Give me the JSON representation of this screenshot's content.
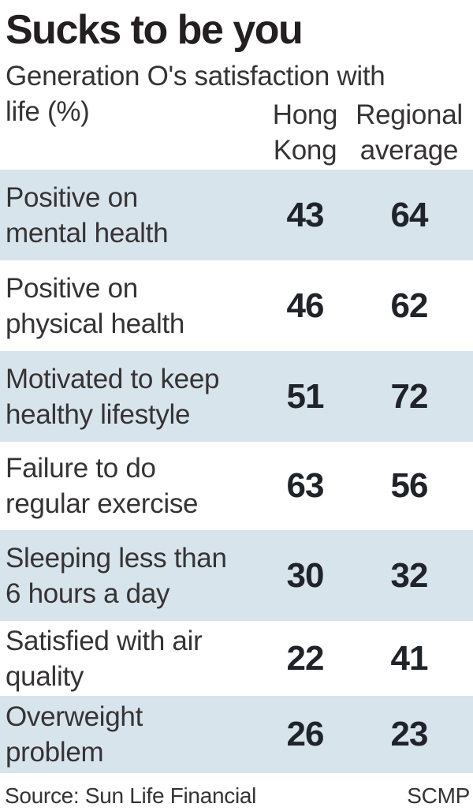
{
  "title": "Sucks to be you",
  "subtitle": "Generation O's satisfaction with\nlife (%)",
  "columns": {
    "hong_kong": "Hong\nKong",
    "regional_average": "Regional\naverage"
  },
  "table": {
    "rows": [
      {
        "label": "Positive on\nmental health",
        "hong_kong": "43",
        "regional_average": "64"
      },
      {
        "label": "Positive on\nphysical health",
        "hong_kong": "46",
        "regional_average": "62"
      },
      {
        "label": "Motivated to keep\nhealthy lifestyle",
        "hong_kong": "51",
        "regional_average": "72"
      },
      {
        "label": "Failure to do\nregular exercise",
        "hong_kong": "63",
        "regional_average": "56"
      },
      {
        "label": "Sleeping less than\n6 hours a day",
        "hong_kong": "30",
        "regional_average": "32"
      },
      {
        "label": "Satisfied with air\nquality",
        "hong_kong": "22",
        "regional_average": "41"
      },
      {
        "label": "Overweight\nproblem",
        "hong_kong": "26",
        "regional_average": "23"
      }
    ]
  },
  "footer": {
    "source": "Source: Sun Life Financial",
    "credit": "SCMP"
  },
  "colors": {
    "row_highlight": "#d8e4ec",
    "text": "#363334",
    "emphasis": "#231f20"
  },
  "chart_data": {
    "type": "table",
    "title": "Sucks to be you",
    "subtitle": "Generation O's satisfaction with life (%)",
    "columns": [
      "Hong Kong",
      "Regional average"
    ],
    "categories": [
      "Positive on mental health",
      "Positive on physical health",
      "Motivated to keep healthy lifestyle",
      "Failure to do regular exercise",
      "Sleeping less than 6 hours a day",
      "Satisfied with air quality",
      "Overweight problem"
    ],
    "series": [
      {
        "name": "Hong Kong",
        "values": [
          43,
          46,
          51,
          63,
          30,
          22,
          26
        ]
      },
      {
        "name": "Regional average",
        "values": [
          64,
          62,
          72,
          56,
          32,
          41,
          23
        ]
      }
    ],
    "unit": "%",
    "source": "Sun Life Financial",
    "credit": "SCMP"
  }
}
